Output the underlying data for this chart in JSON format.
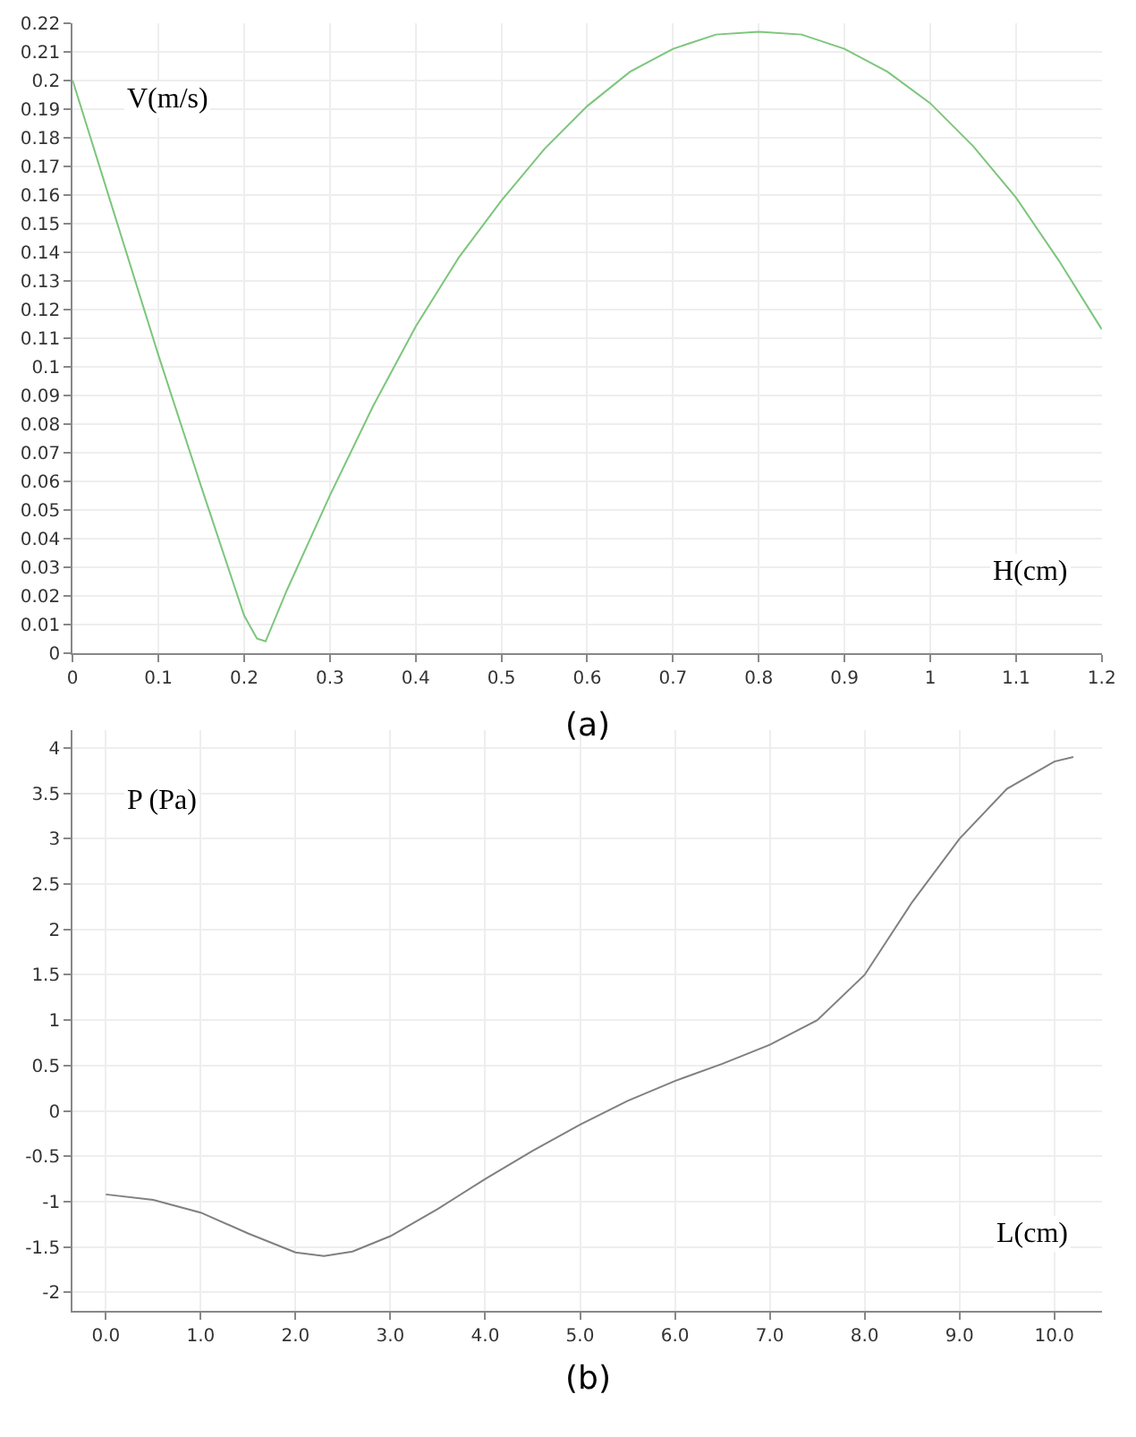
{
  "chart_data": [
    {
      "type": "line",
      "xlabel": "H(cm)",
      "ylabel": "V(m/s)",
      "annotations": [
        "(a)"
      ],
      "grid": true,
      "marker": "none",
      "line_style": "solid",
      "x": [
        0,
        0.05,
        0.1,
        0.15,
        0.2,
        0.215,
        0.225,
        0.25,
        0.3,
        0.35,
        0.4,
        0.45,
        0.5,
        0.55,
        0.6,
        0.65,
        0.7,
        0.75,
        0.8,
        0.85,
        0.9,
        0.95,
        1.0,
        1.05,
        1.1,
        1.15,
        1.2
      ],
      "series": [
        {
          "color": "#7cc67c",
          "values": [
            0.2,
            0.152,
            0.104,
            0.058,
            0.013,
            0.005,
            0.004,
            0.022,
            0.055,
            0.086,
            0.114,
            0.138,
            0.158,
            0.176,
            0.191,
            0.203,
            0.211,
            0.216,
            0.217,
            0.216,
            0.211,
            0.203,
            0.192,
            0.177,
            0.159,
            0.137,
            0.113
          ]
        }
      ],
      "xlim": [
        0,
        1.2
      ],
      "xticks": [
        0,
        0.1,
        0.2,
        0.3,
        0.4,
        0.5,
        0.6,
        0.7,
        0.8,
        0.9,
        1,
        1.1,
        1.2
      ],
      "ylim": [
        0,
        0.22
      ],
      "yticks": [
        0,
        0.01,
        0.02,
        0.03,
        0.04,
        0.05,
        0.06,
        0.07,
        0.08,
        0.09,
        0.1,
        0.11,
        0.12,
        0.13,
        0.14,
        0.15,
        0.16,
        0.17,
        0.18,
        0.19,
        0.2,
        0.21,
        0.22
      ]
    },
    {
      "type": "line",
      "xlabel": "L(cm)",
      "ylabel": "P (Pa)",
      "annotations": [
        "(b)"
      ],
      "grid": true,
      "marker": "none",
      "line_style": "solid",
      "x": [
        0,
        0.5,
        1,
        1.5,
        2,
        2.3,
        2.6,
        3,
        3.5,
        4,
        4.5,
        5,
        5.5,
        6,
        6.5,
        7,
        7.5,
        8,
        8.5,
        9,
        9.5,
        10,
        10.2
      ],
      "series": [
        {
          "color": "#808080",
          "values": [
            -0.92,
            -0.98,
            -1.12,
            -1.35,
            -1.56,
            -1.6,
            -1.55,
            -1.38,
            -1.08,
            -0.75,
            -0.44,
            -0.15,
            0.11,
            0.33,
            0.52,
            0.73,
            1.0,
            1.5,
            2.3,
            3.0,
            3.55,
            3.85,
            3.9
          ]
        }
      ],
      "xlim": [
        -0.35,
        10.5
      ],
      "xticks": [
        {
          "value": 0,
          "label": "0.0"
        },
        {
          "value": 1,
          "label": "1.0"
        },
        {
          "value": 2,
          "label": "2.0"
        },
        {
          "value": 3,
          "label": "3.0"
        },
        {
          "value": 4,
          "label": "4.0"
        },
        {
          "value": 5,
          "label": "5.0"
        },
        {
          "value": 6,
          "label": "6.0"
        },
        {
          "value": 7,
          "label": "7.0"
        },
        {
          "value": 8,
          "label": "8.0"
        },
        {
          "value": 9,
          "label": "9.0"
        },
        {
          "value": 10,
          "label": "10.0"
        }
      ],
      "ylim": [
        -2.2,
        4.2
      ],
      "yticks": [
        -2,
        -1.5,
        -1,
        -0.5,
        0,
        0.5,
        1,
        1.5,
        2,
        2.5,
        3,
        3.5,
        4
      ]
    }
  ]
}
